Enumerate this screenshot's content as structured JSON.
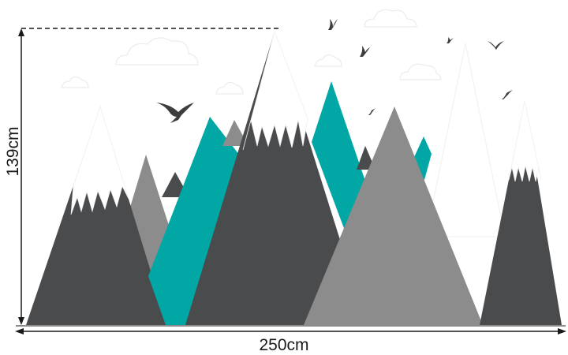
{
  "dimensions": {
    "width_label": "250cm",
    "height_label": "139cm"
  },
  "colors": {
    "dark": "#4a4b4c",
    "gray": "#8c8c8c",
    "teal": "#00a7a4",
    "snow": "#ffffff",
    "outline": "#eeeeee",
    "bird": "#3d3d3d"
  }
}
